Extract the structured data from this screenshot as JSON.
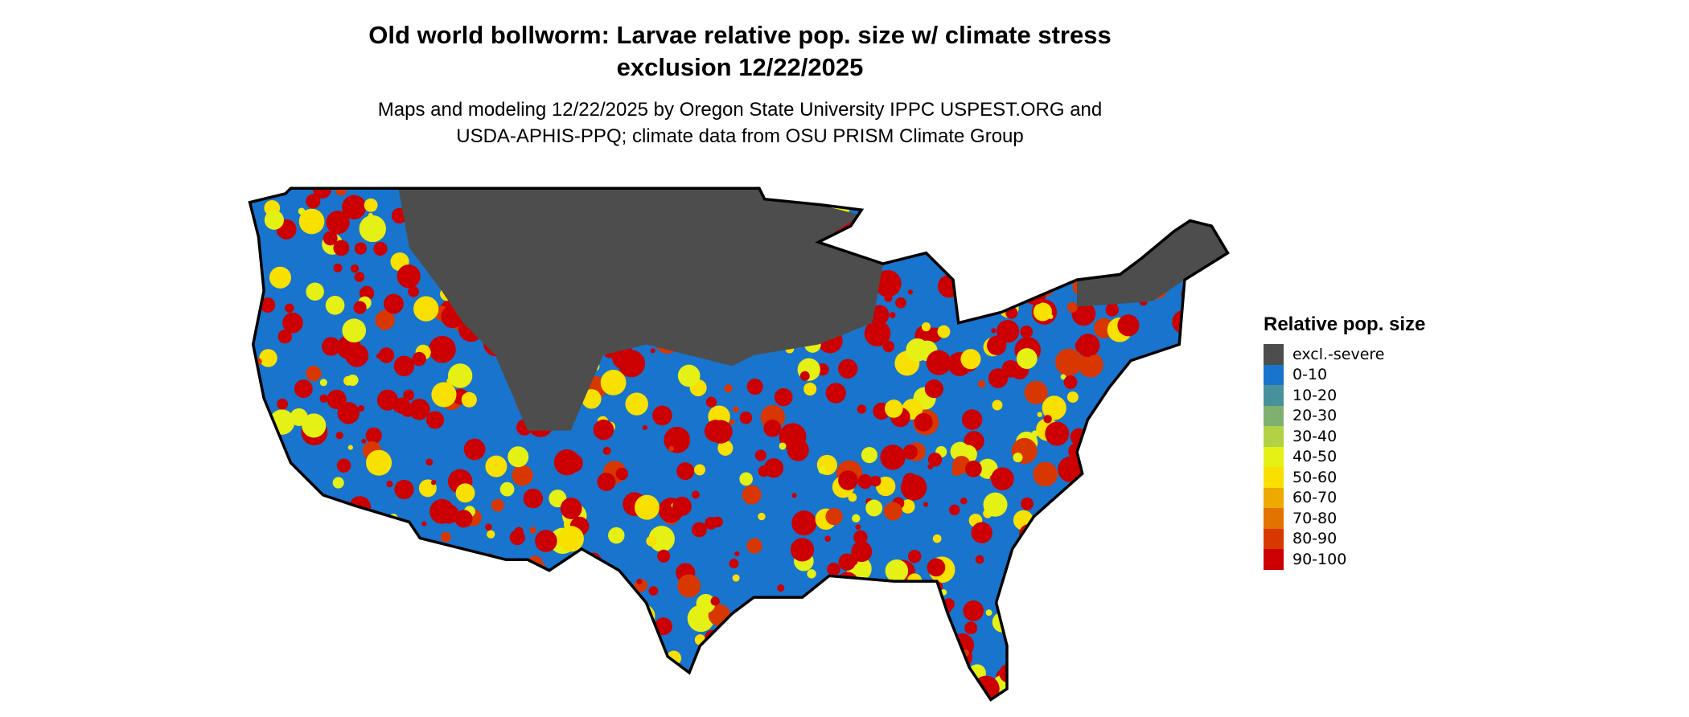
{
  "title": {
    "line1": "Old world bollworm: Larvae relative pop. size w/ climate stress",
    "line2": "exclusion 12/22/2025"
  },
  "subtitle": {
    "line1": "Maps and modeling 12/22/2025 by Oregon State University IPPC USPEST.ORG and",
    "line2": "USDA-APHIS-PPQ; climate data from OSU PRISM Climate Group"
  },
  "legend": {
    "title": "Relative pop. size",
    "items": [
      {
        "label": "excl.-severe",
        "color": "#4d4d4d"
      },
      {
        "label": "0-10",
        "color": "#1874cd"
      },
      {
        "label": "10-20",
        "color": "#48919b"
      },
      {
        "label": "20-30",
        "color": "#7fb070"
      },
      {
        "label": "30-40",
        "color": "#b2d145"
      },
      {
        "label": "40-50",
        "color": "#e5f015"
      },
      {
        "label": "50-60",
        "color": "#f8e000"
      },
      {
        "label": "60-70",
        "color": "#eeaa00"
      },
      {
        "label": "70-80",
        "color": "#e27300"
      },
      {
        "label": "80-90",
        "color": "#d83800"
      },
      {
        "label": "90-100",
        "color": "#cc0000"
      }
    ]
  }
}
